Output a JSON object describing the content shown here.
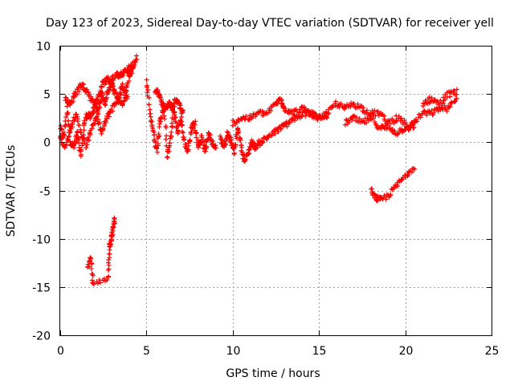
{
  "chart_data": {
    "type": "scatter",
    "title": "Day 123 of 2023, Sidereal Day-to-day VTEC variation (SDTVAR) for receiver yell",
    "xlabel": "GPS time / hours",
    "ylabel": "SDTVAR / TECUs",
    "xlim": [
      0,
      25
    ],
    "ylim": [
      -20,
      10
    ],
    "xticks": [
      0,
      5,
      10,
      15,
      20,
      25
    ],
    "yticks": [
      -20,
      -15,
      -10,
      -5,
      0,
      5,
      10
    ],
    "xtick_labels": [
      "0",
      "5",
      "10",
      "15",
      "20",
      "25"
    ],
    "ytick_labels": [
      "-20",
      "-15",
      "-10",
      "-5",
      "0",
      "5",
      "10"
    ],
    "grid": true,
    "marker": "+",
    "color": "#ff0000",
    "series": [
      {
        "name": "trace-early-cluster",
        "trace": [
          [
            0.0,
            1.5
          ],
          [
            0.2,
            0.5
          ],
          [
            0.4,
            3.5
          ],
          [
            0.6,
            0.0
          ],
          [
            0.8,
            -0.5
          ],
          [
            1.0,
            1.0
          ],
          [
            1.2,
            -1.5
          ],
          [
            1.4,
            2.0
          ],
          [
            1.6,
            3.0
          ],
          [
            1.8,
            2.5
          ],
          [
            2.0,
            4.0
          ],
          [
            2.2,
            3.0
          ],
          [
            2.4,
            5.0
          ],
          [
            2.6,
            4.0
          ],
          [
            2.8,
            5.5
          ],
          [
            3.0,
            6.0
          ],
          [
            3.2,
            5.0
          ],
          [
            3.4,
            4.5
          ],
          [
            3.6,
            6.0
          ],
          [
            3.8,
            5.0
          ],
          [
            4.0,
            7.0
          ],
          [
            4.2,
            7.5
          ],
          [
            4.4,
            8.8
          ]
        ]
      },
      {
        "name": "trace-early-lower",
        "trace": [
          [
            0.0,
            0.5
          ],
          [
            0.3,
            -0.5
          ],
          [
            0.6,
            1.5
          ],
          [
            0.9,
            3.0
          ],
          [
            1.2,
            1.0
          ],
          [
            1.5,
            -0.5
          ],
          [
            1.8,
            1.5
          ],
          [
            2.1,
            2.5
          ],
          [
            2.4,
            1.0
          ],
          [
            2.7,
            2.5
          ],
          [
            3.0,
            3.5
          ],
          [
            3.3,
            4.5
          ],
          [
            3.6,
            4.0
          ],
          [
            3.9,
            5.0
          ]
        ]
      },
      {
        "name": "trace-early-upper",
        "trace": [
          [
            0.3,
            4.5
          ],
          [
            0.6,
            4.0
          ],
          [
            0.9,
            5.0
          ],
          [
            1.2,
            6.0
          ],
          [
            1.5,
            5.5
          ],
          [
            1.8,
            4.5
          ],
          [
            2.1,
            4.0
          ],
          [
            2.4,
            6.0
          ],
          [
            2.7,
            6.5
          ],
          [
            3.0,
            6.5
          ],
          [
            3.3,
            7.0
          ],
          [
            3.6,
            7.0
          ],
          [
            3.9,
            7.5
          ],
          [
            4.2,
            8.0
          ]
        ]
      },
      {
        "name": "trace-hours-5-to-9",
        "trace": [
          [
            5.0,
            6.5
          ],
          [
            5.2,
            3.0
          ],
          [
            5.4,
            1.0
          ],
          [
            5.6,
            -1.0
          ],
          [
            5.8,
            2.0
          ],
          [
            6.0,
            4.0
          ],
          [
            6.2,
            -1.5
          ],
          [
            6.4,
            0.5
          ],
          [
            6.6,
            3.5
          ],
          [
            6.8,
            1.0
          ],
          [
            7.0,
            2.5
          ],
          [
            7.2,
            0.0
          ],
          [
            7.4,
            -1.0
          ],
          [
            7.6,
            1.5
          ],
          [
            7.8,
            2.0
          ],
          [
            8.0,
            -0.5
          ],
          [
            8.2,
            0.5
          ],
          [
            8.4,
            -1.0
          ],
          [
            8.6,
            1.0
          ],
          [
            8.8,
            0.0
          ],
          [
            9.0,
            -0.5
          ]
        ]
      },
      {
        "name": "trace-hours-5-to-7-upper",
        "trace": [
          [
            5.5,
            5.5
          ],
          [
            5.7,
            5.0
          ],
          [
            5.9,
            4.0
          ],
          [
            6.1,
            3.5
          ],
          [
            6.3,
            4.0
          ],
          [
            6.5,
            3.5
          ],
          [
            6.7,
            4.5
          ],
          [
            6.9,
            4.0
          ],
          [
            7.1,
            3.0
          ]
        ]
      },
      {
        "name": "trace-hours-9-to-13",
        "trace": [
          [
            9.3,
            0.5
          ],
          [
            9.5,
            -0.5
          ],
          [
            9.7,
            1.0
          ],
          [
            9.9,
            0.0
          ],
          [
            10.1,
            -1.0
          ],
          [
            10.3,
            1.5
          ],
          [
            10.5,
            -0.5
          ],
          [
            10.7,
            -2.0
          ],
          [
            10.9,
            -1.0
          ],
          [
            11.1,
            0.0
          ],
          [
            11.3,
            -0.5
          ],
          [
            11.6,
            0.0
          ],
          [
            12.0,
            0.5
          ],
          [
            12.4,
            1.0
          ],
          [
            12.8,
            1.5
          ],
          [
            13.2,
            2.0
          ],
          [
            13.6,
            2.5
          ],
          [
            14.0,
            2.5
          ]
        ]
      },
      {
        "name": "trace-hours-10-to-15",
        "trace": [
          [
            10.0,
            2.0
          ],
          [
            10.5,
            2.5
          ],
          [
            11.0,
            2.5
          ],
          [
            11.5,
            3.0
          ],
          [
            12.0,
            3.0
          ],
          [
            12.5,
            4.0
          ],
          [
            12.8,
            4.5
          ],
          [
            13.0,
            3.5
          ],
          [
            13.5,
            3.0
          ],
          [
            14.0,
            3.5
          ],
          [
            14.5,
            3.0
          ],
          [
            15.0,
            2.5
          ],
          [
            15.5,
            2.5
          ]
        ]
      },
      {
        "name": "trace-hours-14-to-20",
        "trace": [
          [
            14.0,
            3.0
          ],
          [
            14.5,
            3.0
          ],
          [
            15.0,
            2.5
          ],
          [
            15.5,
            3.0
          ],
          [
            16.0,
            4.0
          ],
          [
            16.5,
            3.5
          ],
          [
            17.0,
            4.0
          ],
          [
            17.5,
            3.5
          ],
          [
            18.0,
            3.0
          ],
          [
            18.5,
            3.0
          ],
          [
            19.0,
            2.0
          ],
          [
            19.5,
            2.5
          ],
          [
            20.0,
            2.0
          ]
        ]
      },
      {
        "name": "trace-hours-16-to-20-lower",
        "trace": [
          [
            16.5,
            2.0
          ],
          [
            17.0,
            2.5
          ],
          [
            17.5,
            2.0
          ],
          [
            18.0,
            2.5
          ],
          [
            18.5,
            1.5
          ],
          [
            19.0,
            1.5
          ],
          [
            19.5,
            1.0
          ],
          [
            20.0,
            1.5
          ],
          [
            20.5,
            1.5
          ]
        ]
      },
      {
        "name": "trace-hours-20-to-23",
        "trace": [
          [
            20.0,
            1.5
          ],
          [
            20.5,
            2.0
          ],
          [
            21.0,
            3.0
          ],
          [
            21.5,
            3.0
          ],
          [
            22.0,
            3.5
          ],
          [
            22.5,
            3.5
          ],
          [
            23.0,
            4.5
          ]
        ]
      },
      {
        "name": "trace-hours-21-to-23-upper",
        "trace": [
          [
            21.0,
            4.0
          ],
          [
            21.5,
            4.5
          ],
          [
            22.0,
            4.0
          ],
          [
            22.5,
            5.0
          ],
          [
            23.0,
            5.2
          ]
        ]
      },
      {
        "name": "trace-negative-recovery",
        "trace": [
          [
            18.0,
            -5.0
          ],
          [
            18.3,
            -5.8
          ],
          [
            18.6,
            -6.0
          ],
          [
            19.0,
            -5.5
          ],
          [
            19.5,
            -4.5
          ],
          [
            20.0,
            -3.5
          ],
          [
            20.5,
            -2.5
          ]
        ]
      },
      {
        "name": "trace-outliers-early",
        "trace": [
          [
            1.6,
            -12.8
          ],
          [
            1.8,
            -12.0
          ],
          [
            1.9,
            -14.8
          ],
          [
            2.8,
            -14.2
          ],
          [
            2.85,
            -11.0
          ],
          [
            2.95,
            -10.0
          ],
          [
            3.05,
            -9.0
          ],
          [
            3.15,
            -8.0
          ]
        ]
      }
    ]
  }
}
